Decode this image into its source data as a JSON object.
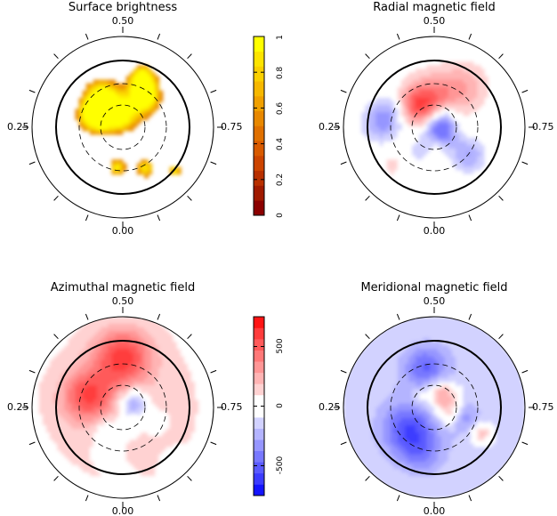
{
  "chart_data": [
    {
      "type": "heatmap",
      "title": "Surface brightness",
      "phase_labels": [
        "0.50",
        "0.25",
        "0.75",
        "0.00"
      ],
      "colorbar": {
        "ticks": [
          "0",
          "0.2",
          "0.4",
          "0.6",
          "0.8",
          "1"
        ],
        "min": 0,
        "max": 1,
        "colors": [
          "#8b0000",
          "#a01a00",
          "#b83000",
          "#cc4400",
          "#d85a00",
          "#e07000",
          "#e88800",
          "#f0a000",
          "#f6b800",
          "#fad000",
          "#fde400",
          "#ffff00"
        ]
      },
      "features": [
        {
          "r": 0.42,
          "phase": 0.41,
          "value": 0.92,
          "size": 0.16
        },
        {
          "r": 0.35,
          "phase": 0.3,
          "value": 0.88,
          "size": 0.14
        },
        {
          "r": 0.25,
          "phase": 0.35,
          "value": 0.75,
          "size": 0.12
        },
        {
          "r": 0.35,
          "phase": 0.62,
          "value": 0.55,
          "size": 0.16
        },
        {
          "r": 0.45,
          "phase": 0.59,
          "value": 0.85,
          "size": 0.12
        },
        {
          "r": 0.1,
          "phase": 0.48,
          "value": 0.8,
          "size": 0.14
        },
        {
          "r": 0.6,
          "phase": 0.56,
          "value": 0.92,
          "size": 0.1
        },
        {
          "r": 0.45,
          "phase": 0.02,
          "value": 0.95,
          "size": 0.07
        },
        {
          "r": 0.52,
          "phase": 0.92,
          "value": 0.92,
          "size": 0.08
        },
        {
          "r": 0.75,
          "phase": 0.86,
          "value": 0.96,
          "size": 0.05
        }
      ]
    },
    {
      "type": "heatmap",
      "title": "Radial magnetic field",
      "phase_labels": [
        "0.50",
        "0.25",
        "0.75",
        "0.00"
      ],
      "features": [
        {
          "r": 0.08,
          "phase": 0.78,
          "value": -600,
          "size": 0.14
        },
        {
          "r": 0.28,
          "phase": 0.47,
          "value": 450,
          "size": 0.2
        },
        {
          "r": 0.32,
          "phase": 0.36,
          "value": 350,
          "size": 0.15
        },
        {
          "r": 0.55,
          "phase": 0.6,
          "value": 250,
          "size": 0.2
        },
        {
          "r": 0.45,
          "phase": 0.31,
          "value": -280,
          "size": 0.15
        },
        {
          "r": 0.6,
          "phase": 0.26,
          "value": -250,
          "size": 0.15
        },
        {
          "r": 0.5,
          "phase": 0.86,
          "value": -280,
          "size": 0.13
        },
        {
          "r": 0.25,
          "phase": 0.7,
          "value": 180,
          "size": 0.1
        },
        {
          "r": 0.3,
          "phase": 0.09,
          "value": -120,
          "size": 0.12
        },
        {
          "r": 0.2,
          "phase": 0.98,
          "value": 120,
          "size": 0.08
        },
        {
          "r": 0.62,
          "phase": 0.13,
          "value": 150,
          "size": 0.08
        },
        {
          "r": 0.22,
          "phase": 0.65,
          "value": -200,
          "size": 0.1
        }
      ]
    },
    {
      "type": "heatmap",
      "title": "Azimuthal magnetic field",
      "phase_labels": [
        "0.50",
        "0.25",
        "0.75",
        "0.00"
      ],
      "colorbar": {
        "ticks": [
          "500",
          "0",
          "-500"
        ],
        "min": -750,
        "max": 750,
        "colors": [
          "#1414ff",
          "#3c3cff",
          "#5a5aff",
          "#7878ff",
          "#9696ff",
          "#b4b4ff",
          "#d2d2ff",
          "#ffffff",
          "#ffffff",
          "#ffd2d2",
          "#ffb4b4",
          "#ff9696",
          "#ff7878",
          "#ff5a5a",
          "#ff3c3c",
          "#ff1414"
        ]
      },
      "features": [
        {
          "r": 0.0,
          "phase": 0.5,
          "value": 150,
          "size": 0.85
        },
        {
          "r": 0.55,
          "phase": 0.5,
          "value": 500,
          "size": 0.22
        },
        {
          "r": 0.4,
          "phase": 0.3,
          "value": 450,
          "size": 0.2
        },
        {
          "r": 0.12,
          "phase": 0.7,
          "value": -450,
          "size": 0.11
        },
        {
          "r": 0.25,
          "phase": 0.95,
          "value": -150,
          "size": 0.08
        },
        {
          "r": 0.3,
          "phase": 0.1,
          "value": -200,
          "size": 0.1
        },
        {
          "r": 0.4,
          "phase": 0.82,
          "value": -220,
          "size": 0.08
        },
        {
          "r": 0.5,
          "phase": 0.05,
          "value": -180,
          "size": 0.1
        },
        {
          "r": 0.75,
          "phase": 0.0,
          "value": -120,
          "size": 0.08
        },
        {
          "r": 0.8,
          "phase": 0.88,
          "value": -100,
          "size": 0.08
        }
      ]
    },
    {
      "type": "heatmap",
      "title": "Meridional magnetic field",
      "phase_labels": [
        "0.50",
        "0.25",
        "0.75",
        "0.00"
      ],
      "features": [
        {
          "r": 0.0,
          "phase": 0.5,
          "value": -180,
          "size": 0.95
        },
        {
          "r": 0.45,
          "phase": 0.47,
          "value": -330,
          "size": 0.16
        },
        {
          "r": 0.38,
          "phase": 0.13,
          "value": -400,
          "size": 0.2
        },
        {
          "r": 0.55,
          "phase": 0.04,
          "value": -180,
          "size": 0.15
        },
        {
          "r": 0.15,
          "phase": 0.67,
          "value": 300,
          "size": 0.13
        },
        {
          "r": 0.18,
          "phase": 0.56,
          "value": 250,
          "size": 0.1
        },
        {
          "r": 0.2,
          "phase": 0.82,
          "value": 200,
          "size": 0.09
        },
        {
          "r": 0.2,
          "phase": 0.35,
          "value": 130,
          "size": 0.08
        },
        {
          "r": 0.6,
          "phase": 0.83,
          "value": 350,
          "size": 0.08
        },
        {
          "r": 0.35,
          "phase": 0.8,
          "value": -200,
          "size": 0.1
        }
      ]
    }
  ]
}
